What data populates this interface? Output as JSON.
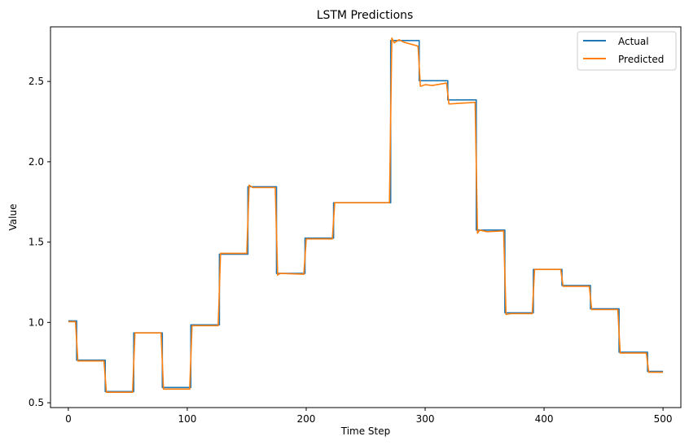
{
  "chart_data": {
    "type": "line",
    "title": "LSTM Predictions",
    "xlabel": "Time Step",
    "ylabel": "Value",
    "xlim": [
      -15,
      515
    ],
    "ylim": [
      0.47,
      2.84
    ],
    "x_ticks": [
      0,
      100,
      200,
      300,
      400,
      500
    ],
    "y_ticks": [
      0.5,
      1.0,
      1.5,
      2.0,
      2.5
    ],
    "x_tick_labels": [
      "0",
      "100",
      "200",
      "300",
      "400",
      "500"
    ],
    "y_tick_labels": [
      "0.5",
      "1.0",
      "1.5",
      "2.0",
      "2.5"
    ],
    "grid": false,
    "legend_position": "top-right",
    "colors": {
      "Actual": "#1f77b4",
      "Predicted": "#ff7f0e"
    },
    "series": [
      {
        "name": "Actual",
        "x": [
          0,
          7,
          7,
          31,
          31,
          55,
          55,
          79,
          79,
          103,
          103,
          127,
          127,
          151,
          151,
          175,
          175,
          199,
          199,
          223,
          223,
          271,
          271,
          295,
          295,
          319,
          319,
          343,
          343,
          367,
          367,
          391,
          391,
          415,
          415,
          439,
          439,
          463,
          463,
          487,
          487,
          500
        ],
        "y": [
          1.01,
          1.01,
          0.765,
          0.765,
          0.57,
          0.57,
          0.935,
          0.935,
          0.595,
          0.595,
          0.985,
          0.985,
          1.425,
          1.425,
          1.845,
          1.845,
          1.305,
          1.305,
          1.525,
          1.525,
          1.745,
          1.745,
          2.755,
          2.755,
          2.505,
          2.505,
          2.385,
          2.385,
          1.575,
          1.575,
          1.06,
          1.06,
          1.33,
          1.33,
          1.23,
          1.23,
          1.085,
          1.085,
          0.815,
          0.815,
          0.695,
          0.695
        ]
      },
      {
        "name": "Predicted",
        "x": [
          0,
          6,
          8,
          30,
          32,
          54,
          56,
          78,
          80,
          102,
          104,
          126,
          128,
          150,
          152,
          155,
          174,
          176,
          178,
          198,
          200,
          222,
          224,
          270,
          272,
          274,
          278,
          282,
          294,
          296,
          300,
          306,
          318,
          320,
          342,
          344,
          346,
          352,
          366,
          368,
          372,
          390,
          392,
          414,
          416,
          438,
          440,
          462,
          464,
          486,
          488,
          500
        ],
        "y": [
          1.005,
          1.005,
          0.76,
          0.76,
          0.565,
          0.565,
          0.935,
          0.935,
          0.585,
          0.585,
          0.98,
          0.98,
          1.43,
          1.43,
          1.855,
          1.84,
          1.84,
          1.295,
          1.305,
          1.3,
          1.52,
          1.52,
          1.745,
          1.745,
          2.77,
          2.74,
          2.76,
          2.745,
          2.72,
          2.47,
          2.48,
          2.475,
          2.49,
          2.36,
          2.37,
          1.555,
          1.575,
          1.565,
          1.57,
          1.05,
          1.055,
          1.055,
          1.33,
          1.33,
          1.225,
          1.225,
          1.08,
          1.08,
          0.81,
          0.81,
          0.69,
          0.69
        ]
      }
    ]
  }
}
